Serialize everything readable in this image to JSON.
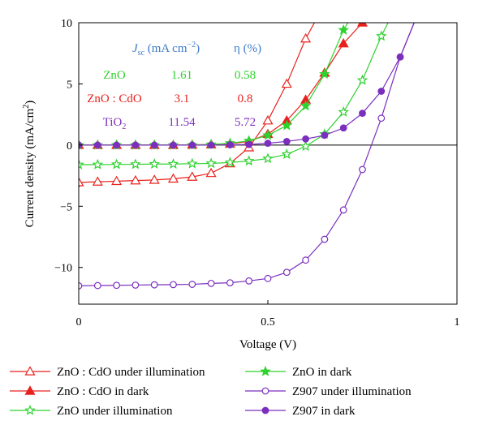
{
  "chart_data": {
    "type": "line",
    "xlabel": "Voltage (V)",
    "ylabel": "Current density (mA/cm",
    "ylabel_sup": "2",
    "ylabel_end": ")",
    "xlim": [
      0,
      1
    ],
    "ylim": [
      -13,
      10
    ],
    "xticks": [
      {
        "v": 0,
        "label": "0"
      },
      {
        "v": 0.5,
        "label": "0.5"
      },
      {
        "v": 1,
        "label": "1"
      }
    ],
    "yticks": [
      {
        "v": -10,
        "label": "−10"
      },
      {
        "v": -5,
        "label": "−5"
      },
      {
        "v": 0,
        "label": "0"
      },
      {
        "v": 5,
        "label": "5"
      },
      {
        "v": 10,
        "label": "10"
      }
    ],
    "colors": {
      "red": "#e8211d",
      "green": "#2fd12f",
      "purple": "#7b2fbe",
      "blue": "#3d7cc9"
    },
    "series": [
      {
        "name": "ZnO:CdO under illumination",
        "color": "#e8211d",
        "marker": "triangle",
        "filled": false,
        "x": [
          -0.01,
          0.0,
          0.05,
          0.1,
          0.15,
          0.2,
          0.25,
          0.3,
          0.35,
          0.4,
          0.45,
          0.5,
          0.55,
          0.6,
          0.65
        ],
        "y": [
          -3.1,
          -3.05,
          -3.0,
          -2.95,
          -2.9,
          -2.85,
          -2.75,
          -2.6,
          -2.3,
          -1.5,
          -0.2,
          2.0,
          5.0,
          8.7,
          11.5
        ]
      },
      {
        "name": "ZnO:CdO in dark",
        "color": "#e8211d",
        "marker": "triangle",
        "filled": true,
        "x": [
          0.0,
          0.05,
          0.1,
          0.15,
          0.2,
          0.25,
          0.3,
          0.35,
          0.4,
          0.45,
          0.5,
          0.55,
          0.6,
          0.65,
          0.7,
          0.75,
          0.8
        ],
        "y": [
          0.0,
          0.0,
          0.0,
          0.0,
          0.0,
          0.0,
          0.02,
          0.05,
          0.1,
          0.3,
          0.9,
          2.0,
          3.7,
          5.9,
          8.3,
          10.0,
          12.0
        ]
      },
      {
        "name": "ZnO under illumination",
        "color": "#2fd12f",
        "marker": "star",
        "filled": false,
        "x": [
          0.0,
          0.05,
          0.1,
          0.15,
          0.2,
          0.25,
          0.3,
          0.35,
          0.4,
          0.45,
          0.5,
          0.55,
          0.6,
          0.65,
          0.7,
          0.75,
          0.8,
          0.85
        ],
        "y": [
          -1.6,
          -1.6,
          -1.58,
          -1.57,
          -1.55,
          -1.55,
          -1.52,
          -1.5,
          -1.42,
          -1.3,
          -1.1,
          -0.75,
          -0.1,
          0.9,
          2.7,
          5.3,
          8.9,
          12.0
        ]
      },
      {
        "name": "ZnO in dark",
        "color": "#2fd12f",
        "marker": "star",
        "filled": true,
        "x": [
          0.0,
          0.05,
          0.1,
          0.15,
          0.2,
          0.25,
          0.3,
          0.35,
          0.4,
          0.45,
          0.5,
          0.55,
          0.6,
          0.65,
          0.7,
          0.75
        ],
        "y": [
          0.0,
          0.0,
          0.0,
          0.0,
          0.0,
          0.0,
          0.0,
          0.05,
          0.15,
          0.35,
          0.8,
          1.6,
          3.2,
          5.8,
          9.4,
          12.0
        ]
      },
      {
        "name": "Z907 under illumination",
        "color": "#7b2fbe",
        "marker": "circle",
        "filled": false,
        "x": [
          0.0,
          0.05,
          0.1,
          0.15,
          0.2,
          0.25,
          0.3,
          0.35,
          0.4,
          0.45,
          0.5,
          0.55,
          0.6,
          0.65,
          0.7,
          0.75,
          0.8,
          0.85,
          0.9
        ],
        "y": [
          -11.5,
          -11.48,
          -11.46,
          -11.44,
          -11.42,
          -11.4,
          -11.38,
          -11.3,
          -11.25,
          -11.1,
          -10.9,
          -10.4,
          -9.4,
          -7.7,
          -5.3,
          -2.0,
          2.2,
          7.2,
          11.0
        ]
      },
      {
        "name": "Z907 in dark",
        "color": "#7b2fbe",
        "marker": "circle",
        "filled": true,
        "x": [
          0.0,
          0.05,
          0.1,
          0.15,
          0.2,
          0.25,
          0.3,
          0.35,
          0.4,
          0.45,
          0.5,
          0.55,
          0.6,
          0.65,
          0.7,
          0.75,
          0.8,
          0.85,
          0.9
        ],
        "y": [
          0.0,
          0.0,
          0.0,
          0.0,
          0.0,
          0.0,
          0.0,
          0.0,
          0.02,
          0.05,
          0.15,
          0.3,
          0.5,
          0.8,
          1.4,
          2.6,
          4.4,
          7.2,
          11.0
        ]
      }
    ],
    "inset_table": {
      "header": {
        "jsc_symbol": "J",
        "jsc_sub": "sc",
        "jsc_unit": " (mA cm",
        "jsc_unit_sup": "−2",
        "jsc_unit_end": ")",
        "eta": "η (%)"
      },
      "rows": [
        {
          "label": "ZnO",
          "label_sub": "",
          "jsc": "1.61",
          "eta": "0.58",
          "color": "#2fd12f"
        },
        {
          "label": "ZnO : CdO",
          "label_sub": "",
          "jsc": "3.1",
          "eta": "0.8",
          "color": "#e8211d"
        },
        {
          "label": "TiO",
          "label_sub": "2",
          "jsc": "11.54",
          "eta": "5.72",
          "color": "#7b2fbe"
        }
      ]
    },
    "legend": [
      {
        "label": "ZnO : CdO under illumination",
        "series": 0
      },
      {
        "label": "ZnO : CdO in dark",
        "series": 1
      },
      {
        "label": "ZnO under illumination",
        "series": 2
      },
      {
        "label": "ZnO in dark",
        "series": 3
      },
      {
        "label": "Z907 under illumination",
        "series": 4
      },
      {
        "label": "Z907 in dark",
        "series": 5
      }
    ]
  }
}
